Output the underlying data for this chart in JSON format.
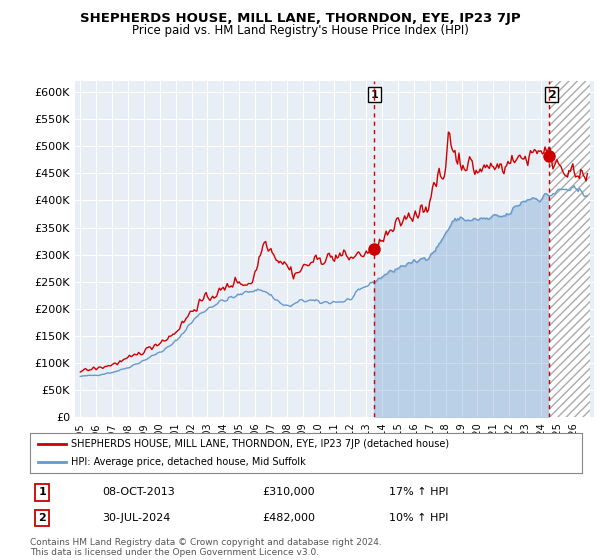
{
  "title": "SHEPHERDS HOUSE, MILL LANE, THORNDON, EYE, IP23 7JP",
  "subtitle": "Price paid vs. HM Land Registry's House Price Index (HPI)",
  "ylim": [
    0,
    620000
  ],
  "yticks": [
    0,
    50000,
    100000,
    150000,
    200000,
    250000,
    300000,
    350000,
    400000,
    450000,
    500000,
    550000,
    600000
  ],
  "ytick_labels": [
    "£0",
    "£50K",
    "£100K",
    "£150K",
    "£200K",
    "£250K",
    "£300K",
    "£350K",
    "£400K",
    "£450K",
    "£500K",
    "£550K",
    "£600K"
  ],
  "bg_color": "#e8eef5",
  "grid_color": "#ffffff",
  "red_color": "#cc0000",
  "blue_color": "#6699cc",
  "legend_label_red": "SHEPHERDS HOUSE, MILL LANE, THORNDON, EYE, IP23 7JP (detached house)",
  "legend_label_blue": "HPI: Average price, detached house, Mid Suffolk",
  "annotation1_label": "1",
  "annotation1_date": "08-OCT-2013",
  "annotation1_price": "£310,000",
  "annotation1_hpi": "17% ↑ HPI",
  "annotation2_label": "2",
  "annotation2_date": "30-JUL-2024",
  "annotation2_price": "£482,000",
  "annotation2_hpi": "10% ↑ HPI",
  "footer": "Contains HM Land Registry data © Crown copyright and database right 2024.\nThis data is licensed under the Open Government Licence v3.0.",
  "vline1_x": 222,
  "vline2_x": 354,
  "marker1_y": 310000,
  "marker2_y": 482000,
  "xlim_min": 0,
  "xlim_max": 384
}
